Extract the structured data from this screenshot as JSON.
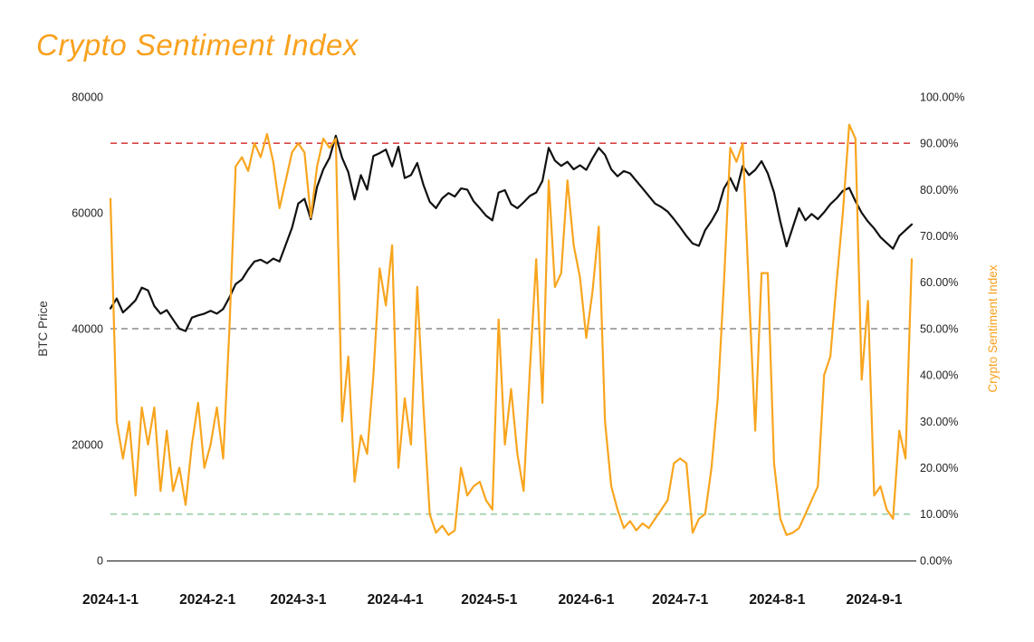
{
  "title": "Crypto Sentiment Index",
  "title_color": "#F9A11E",
  "chart_data": {
    "type": "line",
    "title": "Crypto Sentiment Index",
    "x_start_date": "2024-01-01",
    "x_unit": "days since 2024-01-01",
    "x_range": [
      0,
      256
    ],
    "x_step_days": 2,
    "x_ticks": [
      {
        "day": 0,
        "label": "2024-1-1"
      },
      {
        "day": 31,
        "label": "2024-2-1"
      },
      {
        "day": 60,
        "label": "2024-3-1"
      },
      {
        "day": 91,
        "label": "2024-4-1"
      },
      {
        "day": 121,
        "label": "2024-5-1"
      },
      {
        "day": 152,
        "label": "2024-6-1"
      },
      {
        "day": 182,
        "label": "2024-7-1"
      },
      {
        "day": 213,
        "label": "2024-8-1"
      },
      {
        "day": 244,
        "label": "2024-9-1"
      }
    ],
    "left_axis": {
      "title": "BTC Price",
      "min": 0,
      "max": 80000,
      "tick_interval": 20000,
      "tick_labels": [
        "0",
        "20000",
        "40000",
        "60000",
        "80000"
      ],
      "color": "#333333"
    },
    "right_axis": {
      "title": "Crypto Sentiment Index",
      "min": 0,
      "max": 100,
      "tick_interval": 10,
      "tick_labels": [
        "0.00%",
        "10.00%",
        "20.00%",
        "30.00%",
        "40.00%",
        "50.00%",
        "60.00%",
        "70.00%",
        "80.00%",
        "90.00%",
        "100.00%"
      ],
      "color": "#F9A11E"
    },
    "grid": false,
    "legend": false,
    "axis_line_color": "#333333",
    "thresholds": [
      {
        "axis": "right",
        "value": 90,
        "color": "#D84444",
        "style": "dashed",
        "name": "greed-threshold"
      },
      {
        "axis": "right",
        "value": 50,
        "color": "#8C8C8C",
        "style": "dashed",
        "name": "neutral-threshold"
      },
      {
        "axis": "right",
        "value": 10,
        "color": "#9FD1A9",
        "style": "dashed",
        "name": "fear-threshold"
      }
    ],
    "series": [
      {
        "name": "BTC Price",
        "axis": "left",
        "color": "#111111",
        "width": 2.2,
        "values": [
          43500,
          45200,
          42800,
          43800,
          44900,
          47100,
          46600,
          43900,
          42600,
          43200,
          41600,
          40000,
          39600,
          41900,
          42300,
          42600,
          43100,
          42600,
          43400,
          45400,
          47700,
          48500,
          50200,
          51600,
          51900,
          51300,
          52100,
          51600,
          54500,
          57400,
          61600,
          62400,
          58900,
          64500,
          67500,
          69500,
          73300,
          69500,
          67000,
          62300,
          66500,
          64000,
          69800,
          70300,
          70900,
          68000,
          71400,
          66000,
          66500,
          68600,
          64800,
          61900,
          60800,
          62500,
          63400,
          62800,
          64200,
          64000,
          62000,
          60800,
          59500,
          58700,
          63500,
          63900,
          61500,
          60800,
          61800,
          62900,
          63500,
          65500,
          71200,
          69000,
          68100,
          68800,
          67500,
          68200,
          67400,
          69400,
          71200,
          70000,
          67500,
          66300,
          67200,
          66800,
          65500,
          64200,
          62900,
          61600,
          61000,
          60200,
          58900,
          57500,
          56000,
          54700,
          54300,
          57000,
          58600,
          60500,
          64200,
          66000,
          63800,
          68100,
          66500,
          67400,
          68900,
          66800,
          63500,
          58500,
          54200,
          57500,
          60800,
          58700,
          59800,
          58900,
          60100,
          61500,
          62500,
          63800,
          64300,
          62000,
          60000,
          58500,
          57300,
          55800,
          54800,
          53800,
          56000,
          57000,
          58000
        ]
      },
      {
        "name": "Crypto Sentiment Index",
        "axis": "right",
        "color": "#F8A51E",
        "width": 2.2,
        "values": [
          78,
          30,
          22,
          30,
          14,
          33,
          25,
          33,
          15,
          28,
          15,
          20,
          12,
          25,
          34,
          20,
          25,
          33,
          22,
          50,
          85,
          87,
          84,
          90,
          87,
          92,
          86,
          76,
          82,
          88,
          90,
          88,
          74,
          85,
          91,
          89,
          91,
          30,
          44,
          17,
          27,
          23,
          40,
          63,
          55,
          68,
          20,
          35,
          25,
          59,
          33,
          10,
          6,
          7.5,
          5.5,
          6.5,
          20,
          14,
          16,
          17,
          13,
          11,
          52,
          25,
          37,
          23,
          15,
          41,
          65,
          34,
          82,
          59,
          62,
          82,
          68,
          61,
          48,
          58,
          72,
          30,
          16,
          11,
          7,
          8.5,
          6.5,
          8,
          7,
          9,
          11,
          13,
          21,
          22,
          21,
          6,
          9,
          10,
          20,
          35,
          60,
          89,
          86,
          90,
          58,
          28,
          62,
          62,
          21,
          9,
          5.5,
          6,
          7,
          10,
          13,
          16,
          40,
          44,
          60,
          75,
          94,
          91,
          39,
          56,
          14,
          16,
          11,
          9,
          28,
          22,
          65
        ]
      }
    ]
  }
}
